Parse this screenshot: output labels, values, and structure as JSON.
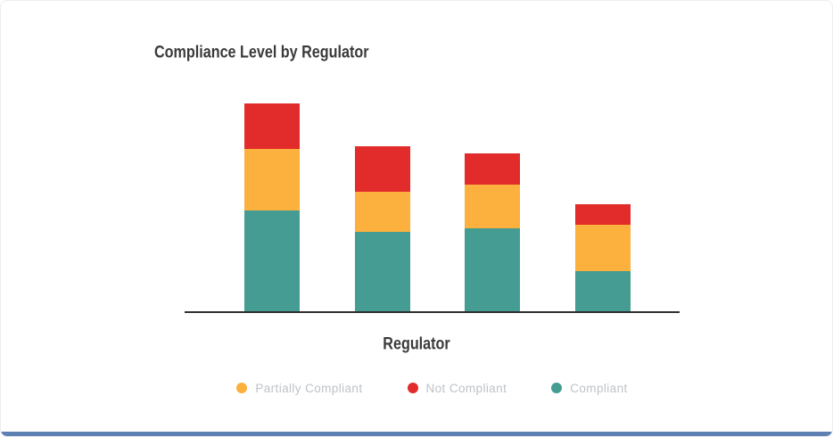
{
  "chart_data": {
    "type": "bar",
    "variant": "stacked",
    "title": "Compliance Level by Regulator",
    "xlabel": "Regulator",
    "ylabel": "",
    "categories": [
      "",
      "",
      "",
      ""
    ],
    "x_tick_labels_visible": false,
    "y_axis_visible": false,
    "grid": false,
    "value_units": "relative height (no numeric axis shown in chart)",
    "stack_order_bottom_to_top": [
      "Compliant",
      "Partially Compliant",
      "Not Compliant"
    ],
    "series": [
      {
        "name": "Compliant",
        "color": "#459c92",
        "values": [
          113,
          89,
          93,
          45
        ]
      },
      {
        "name": "Partially Compliant",
        "color": "#fcb03d",
        "values": [
          69,
          45,
          49,
          52
        ]
      },
      {
        "name": "Not Compliant",
        "color": "#e22b2b",
        "values": [
          51,
          51,
          35,
          23
        ]
      }
    ],
    "totals": [
      233,
      185,
      177,
      120
    ],
    "legend": {
      "position": "bottom",
      "marker": "circle",
      "items": [
        {
          "label": "Partially Compliant",
          "color": "#fcb03d"
        },
        {
          "label": "Not Compliant",
          "color": "#e22b2b"
        },
        {
          "label": "Compliant",
          "color": "#459c92"
        }
      ]
    }
  },
  "colors": {
    "title_text": "#3a3a3a",
    "legend_text": "#bec3c7",
    "axis_line": "#2f2f2f",
    "bottom_accent": "#5d81b3",
    "card_border": "#ededed",
    "background": "#ffffff"
  }
}
